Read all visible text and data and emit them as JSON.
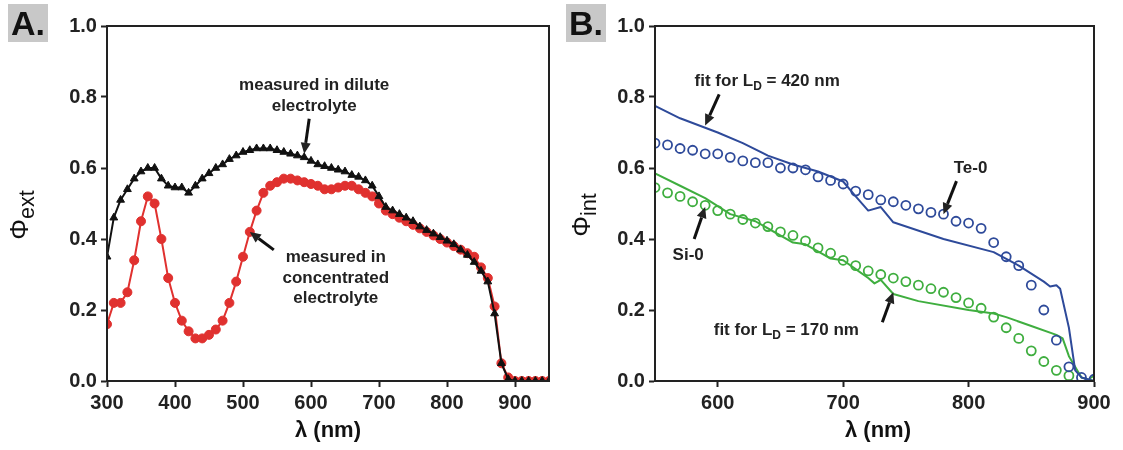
{
  "chart_data": [
    {
      "type": "line",
      "title": "A.",
      "xlabel": "λ (nm)",
      "ylabel": "Φ$_{ext}$",
      "xlim": [
        300,
        950
      ],
      "xticks": [
        300,
        400,
        500,
        600,
        700,
        800,
        900
      ],
      "ylim": [
        0,
        1
      ],
      "yticks": [
        {
          "value": 0,
          "label": "0.0"
        },
        {
          "value": 0.2,
          "label": "0.2"
        },
        {
          "value": 0.4,
          "label": "0.4"
        },
        {
          "value": 0.6,
          "label": "0.6"
        },
        {
          "value": 0.8,
          "label": "0.8"
        },
        {
          "value": 1,
          "label": "1.0"
        }
      ],
      "x": [
        300,
        310,
        320,
        330,
        340,
        350,
        360,
        370,
        380,
        390,
        400,
        410,
        420,
        430,
        440,
        450,
        460,
        470,
        480,
        490,
        500,
        510,
        520,
        530,
        540,
        550,
        560,
        570,
        580,
        590,
        600,
        610,
        620,
        630,
        640,
        650,
        660,
        670,
        680,
        690,
        700,
        710,
        720,
        730,
        740,
        750,
        760,
        770,
        780,
        790,
        800,
        810,
        820,
        830,
        840,
        850,
        860,
        870,
        880,
        890,
        900,
        910,
        920,
        930,
        940,
        950
      ],
      "series": [
        {
          "type": "line",
          "marker": "triangle",
          "color": "#111111",
          "values": [
            0.35,
            0.46,
            0.51,
            0.54,
            0.57,
            0.59,
            0.6,
            0.6,
            0.57,
            0.55,
            0.545,
            0.545,
            0.53,
            0.55,
            0.57,
            0.585,
            0.6,
            0.61,
            0.625,
            0.635,
            0.645,
            0.65,
            0.655,
            0.655,
            0.655,
            0.65,
            0.645,
            0.64,
            0.635,
            0.63,
            0.62,
            0.61,
            0.605,
            0.6,
            0.595,
            0.59,
            0.58,
            0.575,
            0.565,
            0.55,
            0.52,
            0.49,
            0.48,
            0.47,
            0.46,
            0.45,
            0.435,
            0.425,
            0.415,
            0.405,
            0.395,
            0.385,
            0.37,
            0.355,
            0.335,
            0.31,
            0.28,
            0.19,
            0.05,
            0.005,
            0,
            0,
            0,
            0,
            0,
            0
          ]
        },
        {
          "type": "line",
          "marker": "circle",
          "color": "#e0312f",
          "values": [
            0.16,
            0.22,
            0.22,
            0.25,
            0.34,
            0.45,
            0.52,
            0.5,
            0.4,
            0.29,
            0.22,
            0.17,
            0.14,
            0.12,
            0.12,
            0.13,
            0.145,
            0.17,
            0.22,
            0.28,
            0.35,
            0.42,
            0.48,
            0.53,
            0.55,
            0.56,
            0.57,
            0.57,
            0.565,
            0.56,
            0.555,
            0.55,
            0.54,
            0.54,
            0.545,
            0.55,
            0.55,
            0.54,
            0.53,
            0.52,
            0.5,
            0.48,
            0.47,
            0.46,
            0.45,
            0.44,
            0.43,
            0.42,
            0.41,
            0.4,
            0.39,
            0.38,
            0.37,
            0.36,
            0.35,
            0.32,
            0.29,
            0.21,
            0.05,
            0.01,
            0,
            0,
            0,
            0,
            0,
            0
          ]
        }
      ],
      "annotations": [
        {
          "text": "measured in dilute electrolyte",
          "x": 590,
          "y": 0.64
        },
        {
          "text": "measured in concentrated electrolyte",
          "x": 510,
          "y": 0.42
        }
      ]
    },
    {
      "type": "line",
      "title": "B.",
      "xlabel": "λ (nm)",
      "ylabel": "Φ$_{int}$",
      "xlim": [
        550,
        900
      ],
      "xticks": [
        600,
        700,
        800,
        900
      ],
      "ylim": [
        0,
        1
      ],
      "yticks": [
        {
          "value": 0,
          "label": "0.0"
        },
        {
          "value": 0.2,
          "label": "0.2"
        },
        {
          "value": 0.4,
          "label": "0.4"
        },
        {
          "value": 0.6,
          "label": "0.6"
        },
        {
          "value": 0.8,
          "label": "0.8"
        },
        {
          "value": 1,
          "label": "1.0"
        }
      ],
      "series": [
        {
          "type": "line",
          "marker": "none",
          "color": "#2e4a9a",
          "x": [
            550,
            570,
            600,
            620,
            640,
            660,
            680,
            700,
            710,
            720,
            730,
            740,
            780,
            820,
            840,
            860,
            865,
            870,
            873,
            880,
            885,
            890,
            900
          ],
          "values": [
            0.775,
            0.74,
            0.7,
            0.67,
            0.635,
            0.61,
            0.59,
            0.562,
            0.52,
            0.48,
            0.49,
            0.447,
            0.4,
            0.363,
            0.325,
            0.28,
            0.266,
            0.27,
            0.26,
            0.15,
            0.03,
            0.01,
            0
          ]
        },
        {
          "type": "scatter",
          "marker": "circle",
          "color": "#2e4a9a",
          "x": [
            550,
            560,
            570,
            580,
            590,
            600,
            610,
            620,
            630,
            640,
            650,
            660,
            670,
            680,
            690,
            700,
            710,
            720,
            730,
            740,
            750,
            760,
            770,
            780,
            790,
            800,
            810,
            820,
            830,
            840,
            850,
            860,
            870,
            880,
            890,
            900
          ],
          "values": [
            0.67,
            0.665,
            0.655,
            0.65,
            0.64,
            0.64,
            0.63,
            0.62,
            0.615,
            0.615,
            0.6,
            0.6,
            0.595,
            0.575,
            0.565,
            0.555,
            0.535,
            0.525,
            0.51,
            0.505,
            0.495,
            0.485,
            0.475,
            0.47,
            0.45,
            0.445,
            0.43,
            0.39,
            0.35,
            0.325,
            0.27,
            0.2,
            0.115,
            0.04,
            0.01,
            0.005
          ]
        },
        {
          "type": "line",
          "marker": "none",
          "color": "#3fae3f",
          "x": [
            550,
            570,
            590,
            610,
            630,
            660,
            670,
            690,
            700,
            710,
            720,
            725,
            730,
            740,
            760,
            800,
            820,
            830,
            850,
            870,
            875,
            880,
            890,
            900
          ],
          "values": [
            0.585,
            0.55,
            0.515,
            0.47,
            0.45,
            0.39,
            0.385,
            0.345,
            0.34,
            0.315,
            0.29,
            0.275,
            0.285,
            0.245,
            0.225,
            0.2,
            0.19,
            0.18,
            0.155,
            0.13,
            0.12,
            0.07,
            0.01,
            0
          ]
        },
        {
          "type": "scatter",
          "marker": "circle",
          "color": "#3fae3f",
          "x": [
            550,
            560,
            570,
            580,
            590,
            600,
            610,
            620,
            630,
            640,
            650,
            660,
            670,
            680,
            690,
            700,
            710,
            720,
            730,
            740,
            750,
            760,
            770,
            780,
            790,
            800,
            810,
            820,
            830,
            840,
            850,
            860,
            870,
            880,
            890,
            900
          ],
          "values": [
            0.545,
            0.53,
            0.52,
            0.505,
            0.495,
            0.48,
            0.47,
            0.455,
            0.445,
            0.435,
            0.42,
            0.41,
            0.395,
            0.375,
            0.36,
            0.34,
            0.325,
            0.31,
            0.3,
            0.29,
            0.28,
            0.27,
            0.26,
            0.25,
            0.235,
            0.22,
            0.205,
            0.18,
            0.15,
            0.12,
            0.085,
            0.055,
            0.03,
            0.015,
            null,
            0
          ]
        }
      ],
      "annotations": [
        {
          "text": "fit for L$_{D}$ = 420 nm",
          "x": 590,
          "y": 0.72
        },
        {
          "text": "Te-0",
          "x": 780,
          "y": 0.47
        },
        {
          "text": "Si-0",
          "x": 590,
          "y": 0.49
        },
        {
          "text": "fit for L$_{D}$ = 170 nm",
          "x": 740,
          "y": 0.25
        }
      ]
    }
  ]
}
